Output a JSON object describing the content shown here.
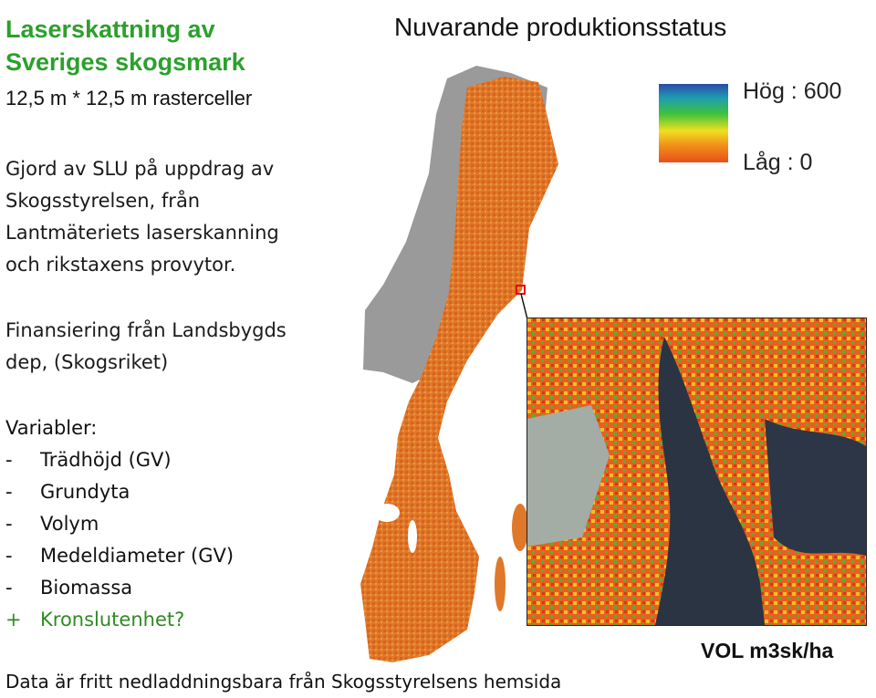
{
  "left_panel": {
    "title_line1": "Laserskattning av",
    "title_line2": "Sveriges skogsmark",
    "subtitle": "12,5 m * 12,5 m rasterceller",
    "paragraph1": [
      "Gjord av SLU på uppdrag av",
      "Skogsstyrelsen, från",
      "Lantmäteriets laserskanning",
      "och rikstaxens provytor."
    ],
    "paragraph2": [
      "Finansiering från Landsbygds",
      "dep, (Skogsriket)"
    ],
    "variables_heading": "Variabler:",
    "variables": [
      {
        "bullet": "-",
        "label": "Trädhöjd (GV)"
      },
      {
        "bullet": "-",
        "label": "Grundyta"
      },
      {
        "bullet": "-",
        "label": "Volym"
      },
      {
        "bullet": "-",
        "label": "Medeldiameter (GV)"
      },
      {
        "bullet": "-",
        "label": "Biomassa"
      }
    ],
    "extra_variable": {
      "bullet": "+",
      "label": "Kronslutenhet?"
    }
  },
  "map": {
    "title": "Nuvarande produktionsstatus",
    "legend_high": "Hög : 600",
    "legend_low": "Låg : 0",
    "unit": "VOL m3sk/ha",
    "colors": {
      "high": "#2a4aa8",
      "mid": "#3cc23c",
      "low": "#e8501a",
      "base": "#e0782a"
    }
  },
  "footer": "Data är fritt nedladdningsbara från Skogsstyrelsens hemsida"
}
